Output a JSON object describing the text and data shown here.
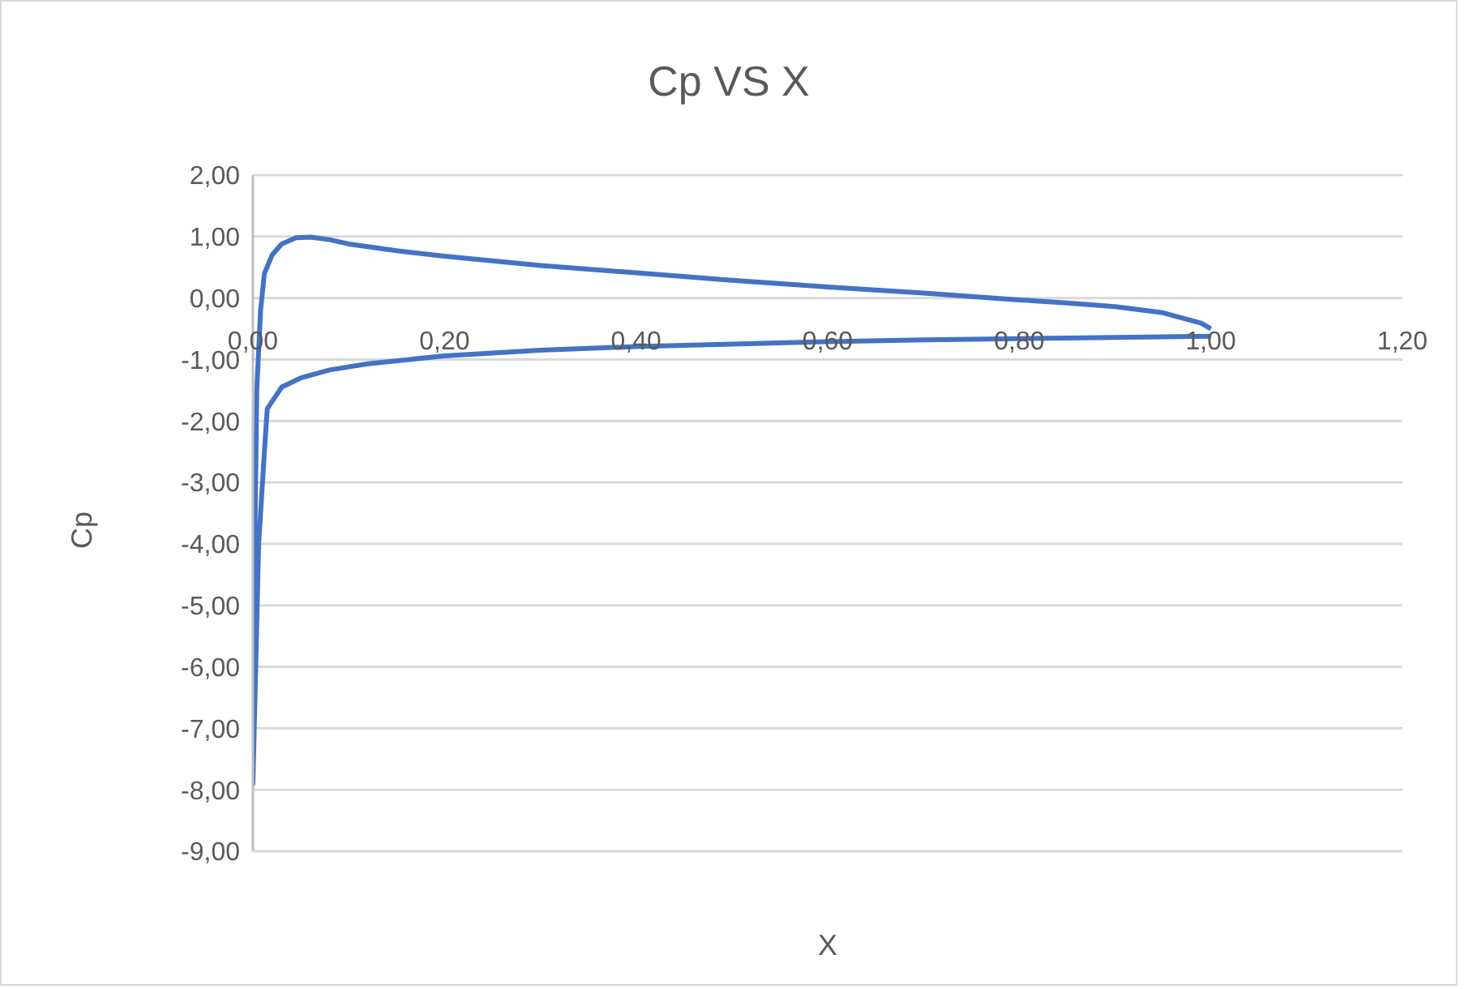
{
  "chart_data": {
    "type": "line",
    "title": "Cp VS X",
    "xlabel": "X",
    "ylabel": "Cp",
    "xlim": [
      0,
      1.2
    ],
    "xticks": [
      {
        "value": 0,
        "label": "0,00"
      },
      {
        "value": 0.2,
        "label": "0,20"
      },
      {
        "value": 0.4,
        "label": "0,40"
      },
      {
        "value": 0.6,
        "label": "0,60"
      },
      {
        "value": 0.8,
        "label": "0,80"
      },
      {
        "value": 1,
        "label": "1,00"
      },
      {
        "value": 1.2,
        "label": "1,20"
      }
    ],
    "ylim": [
      -9,
      2
    ],
    "yticks": [
      {
        "value": -9,
        "label": "-9,00"
      },
      {
        "value": -8,
        "label": "-8,00"
      },
      {
        "value": -7,
        "label": "-7,00"
      },
      {
        "value": -6,
        "label": "-6,00"
      },
      {
        "value": -5,
        "label": "-5,00"
      },
      {
        "value": -4,
        "label": "-4,00"
      },
      {
        "value": -3,
        "label": "-3,00"
      },
      {
        "value": -2,
        "label": "-2,00"
      },
      {
        "value": -1,
        "label": "-1,00"
      },
      {
        "value": 0,
        "label": "0,00"
      },
      {
        "value": 1,
        "label": "1,00"
      },
      {
        "value": 2,
        "label": "2,00"
      }
    ],
    "grid": "y",
    "legend": false,
    "marker": "none",
    "line_style": "solid",
    "series": [
      {
        "color": "#4472c4",
        "x": [
          1.0,
          0.99,
          0.95,
          0.9,
          0.85,
          0.8,
          0.7,
          0.6,
          0.5,
          0.4,
          0.3,
          0.2,
          0.15,
          0.1,
          0.08,
          0.06,
          0.045,
          0.03,
          0.02,
          0.012,
          0.008,
          0.004,
          0.002,
          0.0,
          0.006,
          0.012,
          0.015,
          0.03,
          0.05,
          0.08,
          0.12,
          0.2,
          0.3,
          0.4,
          0.5,
          0.6,
          0.7,
          0.8,
          0.9,
          1.0
        ],
        "values": [
          -0.5,
          -0.41,
          -0.24,
          -0.14,
          -0.08,
          -0.03,
          0.08,
          0.18,
          0.29,
          0.41,
          0.53,
          0.68,
          0.77,
          0.88,
          0.95,
          0.99,
          0.98,
          0.88,
          0.7,
          0.4,
          -0.2,
          -1.5,
          -4.0,
          -7.9,
          -4.0,
          -2.5,
          -1.8,
          -1.45,
          -1.3,
          -1.17,
          -1.07,
          -0.94,
          -0.85,
          -0.79,
          -0.75,
          -0.71,
          -0.68,
          -0.66,
          -0.64,
          -0.62
        ]
      }
    ]
  }
}
